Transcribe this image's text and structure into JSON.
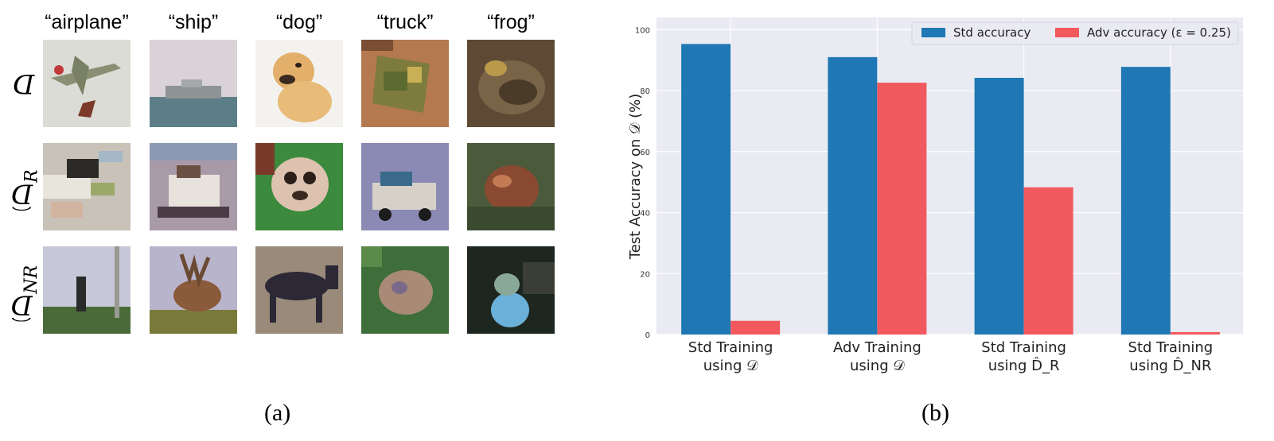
{
  "panel_a": {
    "column_labels": [
      "“airplane”",
      "“ship”",
      "“dog”",
      "“truck”",
      "“frog”"
    ],
    "row_labels": [
      {
        "main": "D",
        "sub": "",
        "hat": false
      },
      {
        "main": "D",
        "sub": "R",
        "hat": true
      },
      {
        "main": "D",
        "sub": "NR",
        "hat": true
      }
    ],
    "caption": "(a)"
  },
  "panel_b": {
    "caption": "(b)"
  },
  "chart_data": {
    "type": "bar",
    "categories": [
      {
        "line1": "Std Training",
        "line2": "using 𝒟"
      },
      {
        "line1": "Adv Training",
        "line2": "using 𝒟"
      },
      {
        "line1": "Std Training",
        "line2": "using D̂_R"
      },
      {
        "line1": "Std Training",
        "line2": "using D̂_NR"
      }
    ],
    "series": [
      {
        "name": "Std accuracy",
        "color": "#1f77b4",
        "values": [
          95.3,
          91.0,
          84.2,
          87.8
        ]
      },
      {
        "name": "Adv accuracy (ε = 0.25)",
        "color": "#f2595f",
        "values": [
          4.5,
          82.6,
          48.3,
          0.8
        ]
      }
    ],
    "xlabel": "",
    "ylabel": "Test Accuracy on 𝒟 (%)",
    "ylim": [
      0,
      100
    ],
    "yticks": [
      0,
      20,
      40,
      60,
      80,
      100
    ],
    "grid": true,
    "legend_position": "top-right"
  }
}
